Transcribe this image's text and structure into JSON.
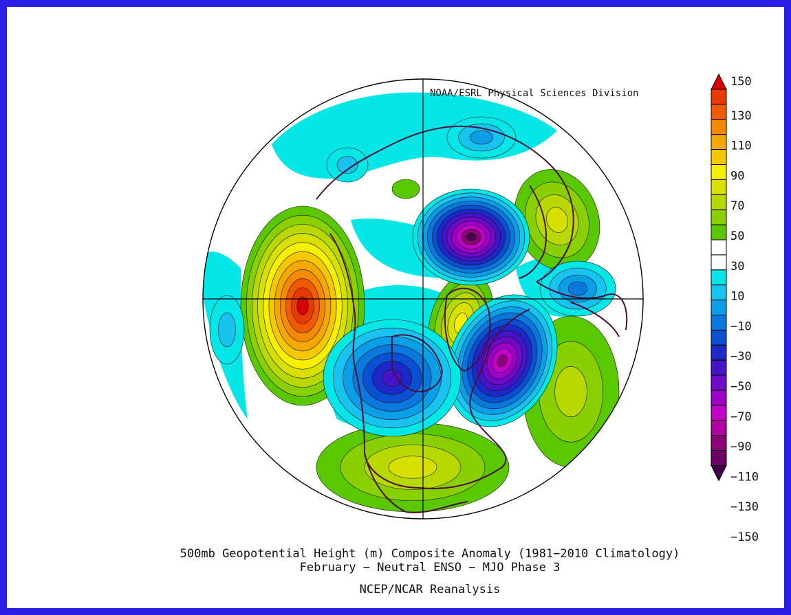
{
  "credit": "NOAA/ESRL Physical Sciences Division",
  "title": {
    "line1": "500mb Geopotential Height (m) Composite Anomaly (1981−2010 Climatology)",
    "line2": "February − Neutral ENSO − MJO Phase 3",
    "line3": "NCEP/NCAR Reanalysis"
  },
  "colors": {
    "frame": "#2a1ee6",
    "coastline": "#4a0f3c"
  },
  "colorbar": {
    "labels": [
      "150",
      "130",
      "110",
      "90",
      "70",
      "50",
      "30",
      "10",
      "−10",
      "−30",
      "−50",
      "−70",
      "−90",
      "−110",
      "−130",
      "−150"
    ],
    "colors_top_to_bottom": [
      "#d70000",
      "#e83a00",
      "#f05a00",
      "#f58a00",
      "#f5a800",
      "#f5c800",
      "#f5ef00",
      "#d8e000",
      "#b7d800",
      "#8ad000",
      "#5ac800",
      "#ffffff",
      "#ffffff",
      "#05e6e6",
      "#19c3f0",
      "#0a9ee6",
      "#0a78dc",
      "#0a50d2",
      "#1e28c8",
      "#4614c8",
      "#6e0ac8",
      "#9c00c8",
      "#c200c8",
      "#b400a0",
      "#8c0078",
      "#6e0064",
      "#460050"
    ]
  },
  "chart_data": {
    "type": "heatmap",
    "projection": "north polar stereographic",
    "variable": "500mb geopotential height composite anomaly",
    "units": "m",
    "contour_interval": 10,
    "range": [
      -150,
      150
    ],
    "features": [
      {
        "kind": "max",
        "region": "North Pacific / Gulf of Alaska",
        "approx_value": 145
      },
      {
        "kind": "max",
        "region": "Eastern Asia / Siberia",
        "approx_value": 50
      },
      {
        "kind": "max",
        "region": "Greenland",
        "approx_value": 60
      },
      {
        "kind": "max",
        "region": "Central North Atlantic",
        "approx_value": 30
      },
      {
        "kind": "max",
        "region": "Southern United States / Gulf of Mexico",
        "approx_value": 45
      },
      {
        "kind": "min",
        "region": "Arctic north of Scandinavia",
        "approx_value": -140
      },
      {
        "kind": "min",
        "region": "Labrador Sea / Northeast Canada",
        "approx_value": -120
      },
      {
        "kind": "min",
        "region": "Central Canada",
        "approx_value": -80
      },
      {
        "kind": "min",
        "region": "Western Europe / Mediterranean",
        "approx_value": -40
      }
    ]
  }
}
